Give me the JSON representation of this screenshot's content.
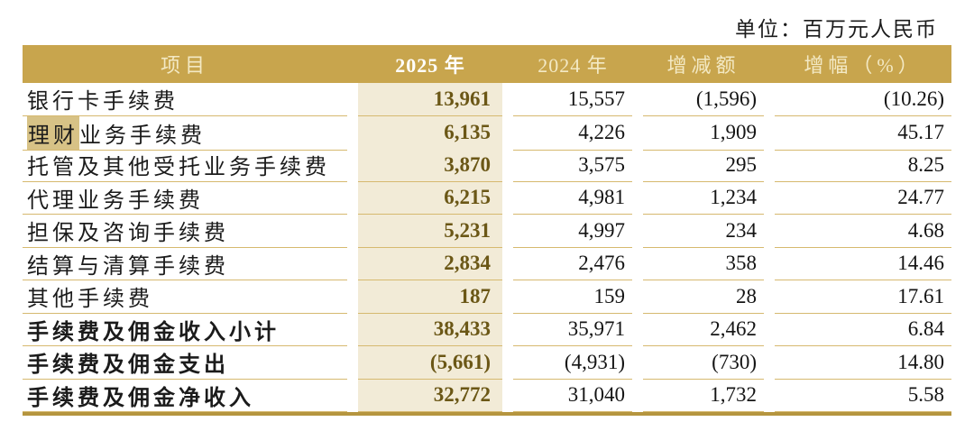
{
  "unit_label": "单位：百万元人民币",
  "colors": {
    "header_bg": "#c8a54d",
    "header_text": "#f3e9c4",
    "header_text_2025": "#ffffff",
    "column_2025_bg": "#f2ebd7",
    "value_2025_text": "#6b5716",
    "row_separator": "#d6b96f",
    "bottom_border": "#b5953f",
    "search_highlight": "#d7c286",
    "body_text": "#1b1b1b"
  },
  "table": {
    "headers": {
      "item": "项目",
      "y2025": "2025 年",
      "y2024": "2024 年",
      "change": "增减额",
      "pct": "增幅（%）"
    },
    "rows": [
      {
        "label": "银行卡手续费",
        "v2025": "13,961",
        "v2024": "15,557",
        "change": "(1,596)",
        "pct": "(10.26)"
      },
      {
        "label_hl": "理财",
        "label_rest": "业务手续费",
        "v2025": "6,135",
        "v2024": "4,226",
        "change": "1,909",
        "pct": "45.17"
      },
      {
        "label": "托管及其他受托业务手续费",
        "v2025": "3,870",
        "v2024": "3,575",
        "change": "295",
        "pct": "8.25"
      },
      {
        "label": "代理业务手续费",
        "v2025": "6,215",
        "v2024": "4,981",
        "change": "1,234",
        "pct": "24.77"
      },
      {
        "label": "担保及咨询手续费",
        "v2025": "5,231",
        "v2024": "4,997",
        "change": "234",
        "pct": "4.68"
      },
      {
        "label": "结算与清算手续费",
        "v2025": "2,834",
        "v2024": "2,476",
        "change": "358",
        "pct": "14.46"
      },
      {
        "label": "其他手续费",
        "v2025": "187",
        "v2024": "159",
        "change": "28",
        "pct": "17.61"
      },
      {
        "label": "手续费及佣金收入小计",
        "v2025": "38,433",
        "v2024": "35,971",
        "change": "2,462",
        "pct": "6.84"
      },
      {
        "label": "手续费及佣金支出",
        "v2025": "(5,661)",
        "v2024": "(4,931)",
        "change": "(730)",
        "pct": "14.80"
      },
      {
        "label": "手续费及佣金净收入",
        "v2025": "32,772",
        "v2024": "31,040",
        "change": "1,732",
        "pct": "5.58"
      }
    ]
  }
}
